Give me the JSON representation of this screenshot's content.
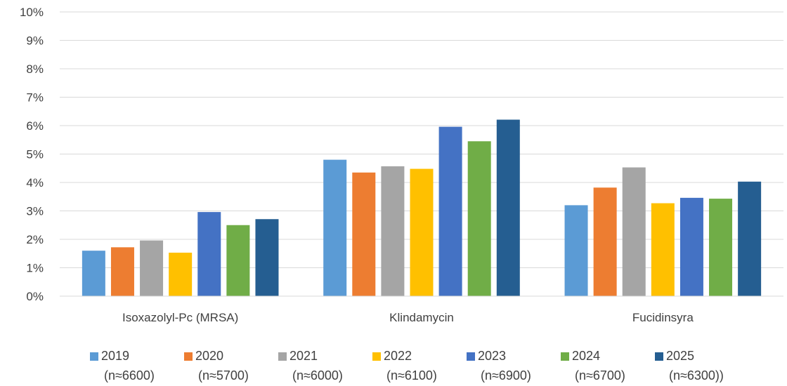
{
  "chart_data": {
    "type": "bar",
    "categories": [
      "Isoxazolyl-Pc (MRSA)",
      "Klindamycin",
      "Fucidinsyra"
    ],
    "series": [
      {
        "name": "2019",
        "note": "(n≈6600)",
        "color": "#5B9BD5",
        "values": [
          1.6,
          4.8,
          3.2
        ]
      },
      {
        "name": "2020",
        "note": "(n≈5700)",
        "color": "#ED7D31",
        "values": [
          1.72,
          4.35,
          3.82
        ]
      },
      {
        "name": "2021",
        "note": "(n≈6000)",
        "color": "#A5A5A5",
        "values": [
          1.96,
          4.57,
          4.53
        ]
      },
      {
        "name": "2022",
        "note": "(n≈6100)",
        "color": "#FFC000",
        "values": [
          1.53,
          4.48,
          3.27
        ]
      },
      {
        "name": "2023",
        "note": "(n≈6900)",
        "color": "#4472C4",
        "values": [
          2.96,
          5.96,
          3.46
        ]
      },
      {
        "name": "2024",
        "note": "(n≈6700)",
        "color": "#70AD47",
        "values": [
          2.5,
          5.45,
          3.43
        ]
      },
      {
        "name": "2025",
        "note": "(n≈6300))",
        "color": "#255E91",
        "values": [
          2.71,
          6.21,
          4.03
        ]
      }
    ],
    "y_ticks": [
      "0%",
      "1%",
      "2%",
      "3%",
      "4%",
      "5%",
      "6%",
      "7%",
      "8%",
      "9%",
      "10%"
    ],
    "ylim": [
      0,
      10
    ],
    "yunit": "%",
    "grid": true,
    "legend_position": "bottom"
  }
}
